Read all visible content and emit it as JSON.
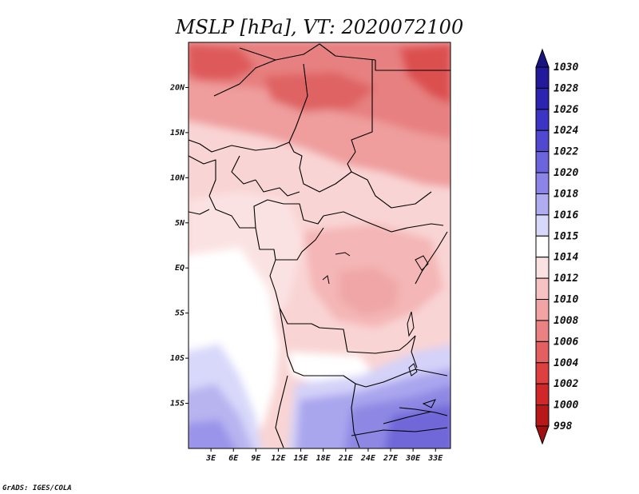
{
  "title": "MSLP [hPa], VT: 2020072100",
  "credit": "GrADS: IGES/COLA",
  "map": {
    "lon_ticks": [
      "3E",
      "6E",
      "9E",
      "12E",
      "15E",
      "18E",
      "21E",
      "24E",
      "27E",
      "30E",
      "33E"
    ],
    "lat_ticks": [
      "20N",
      "15N",
      "10N",
      "5N",
      "EQ",
      "5S",
      "10S",
      "15S"
    ],
    "lon_range": [
      0,
      35
    ],
    "lat_range": [
      -20,
      25
    ]
  },
  "colorbar": {
    "levels": [
      "1030",
      "1028",
      "1026",
      "1024",
      "1022",
      "1020",
      "1018",
      "1016",
      "1015",
      "1014",
      "1012",
      "1010",
      "1008",
      "1006",
      "1004",
      "1002",
      "1000",
      "998"
    ],
    "colors": [
      "#1a1480",
      "#221a9a",
      "#2c24b0",
      "#3c34c4",
      "#5048d0",
      "#6c64dc",
      "#8c84e6",
      "#b0acf0",
      "#d8d8fa",
      "#ffffff",
      "#fbe2e2",
      "#f6c2c2",
      "#f2a4a4",
      "#ea8282",
      "#e46060",
      "#de4040",
      "#d02828",
      "#b81818",
      "#a01010"
    ]
  }
}
